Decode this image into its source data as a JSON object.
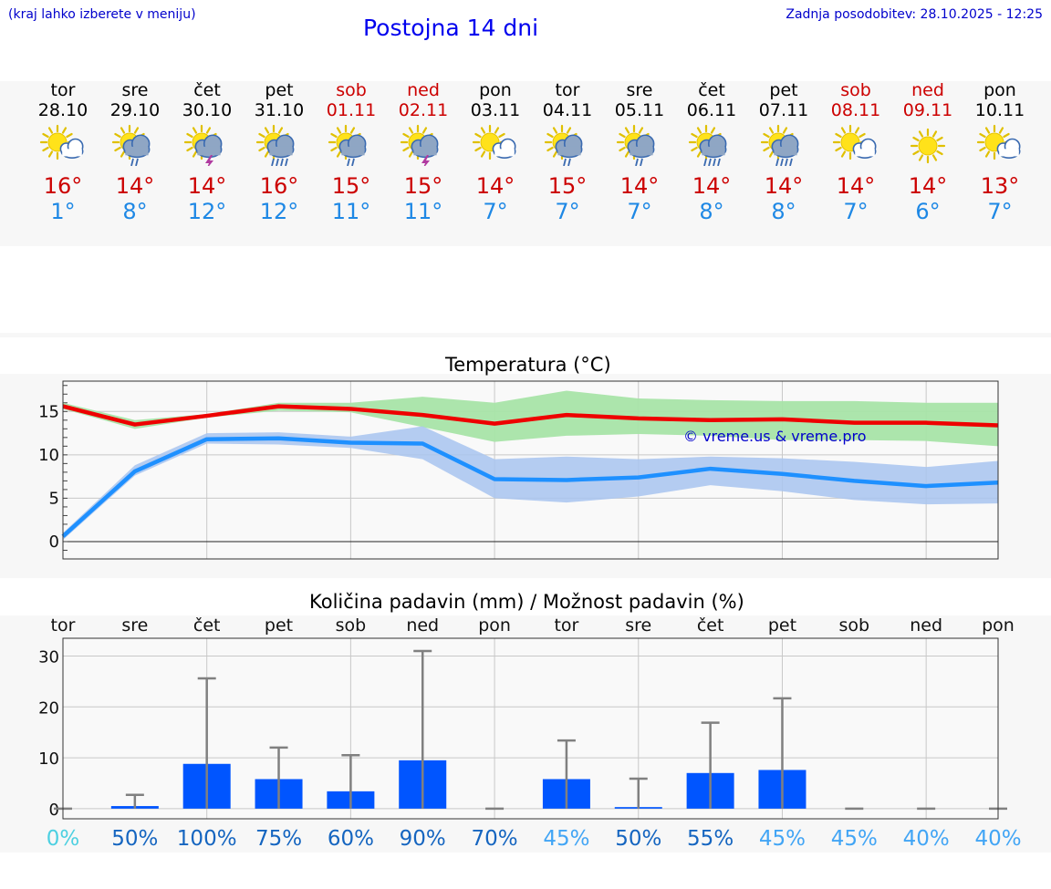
{
  "header": {
    "hint": "(kraj lahko izberete v meniju)",
    "title": "Postojna 14 dni",
    "updated": "Zadnja posodobitev: 28.10.2025 - 12:25"
  },
  "days": [
    {
      "name": "tor",
      "date": "28.10",
      "weekend": false,
      "icon": "sun-cloud-icon",
      "max": "16°",
      "min": "1°"
    },
    {
      "name": "sre",
      "date": "29.10",
      "weekend": false,
      "icon": "sun-cloud-rain-icon",
      "max": "14°",
      "min": "8°"
    },
    {
      "name": "čet",
      "date": "30.10",
      "weekend": false,
      "icon": "sun-cloud-thunder-icon",
      "max": "14°",
      "min": "12°"
    },
    {
      "name": "pet",
      "date": "31.10",
      "weekend": false,
      "icon": "sun-cloud-heavy-rain-icon",
      "max": "16°",
      "min": "12°"
    },
    {
      "name": "sob",
      "date": "01.11",
      "weekend": true,
      "icon": "sun-cloud-rain-icon",
      "max": "15°",
      "min": "11°"
    },
    {
      "name": "ned",
      "date": "02.11",
      "weekend": true,
      "icon": "sun-cloud-thunder-icon",
      "max": "15°",
      "min": "11°"
    },
    {
      "name": "pon",
      "date": "03.11",
      "weekend": false,
      "icon": "sun-cloud-icon",
      "max": "14°",
      "min": "7°"
    },
    {
      "name": "tor",
      "date": "04.11",
      "weekend": false,
      "icon": "sun-cloud-rain-icon",
      "max": "15°",
      "min": "7°"
    },
    {
      "name": "sre",
      "date": "05.11",
      "weekend": false,
      "icon": "sun-cloud-rain-icon",
      "max": "14°",
      "min": "7°"
    },
    {
      "name": "čet",
      "date": "06.11",
      "weekend": false,
      "icon": "sun-cloud-heavy-rain-icon",
      "max": "14°",
      "min": "8°"
    },
    {
      "name": "pet",
      "date": "07.11",
      "weekend": false,
      "icon": "sun-cloud-heavy-rain-icon",
      "max": "14°",
      "min": "8°"
    },
    {
      "name": "sob",
      "date": "08.11",
      "weekend": true,
      "icon": "sun-cloud-icon",
      "max": "14°",
      "min": "7°"
    },
    {
      "name": "ned",
      "date": "09.11",
      "weekend": true,
      "icon": "sun-icon",
      "max": "14°",
      "min": "6°"
    },
    {
      "name": "pon",
      "date": "10.11",
      "weekend": false,
      "icon": "sun-cloud-icon",
      "max": "13°",
      "min": "7°"
    }
  ],
  "colors": {
    "max_line": "#ee0000",
    "max_band": "#a8e4a8",
    "min_line": "#1e90ff",
    "min_band": "#a8c4f0",
    "bar": "#0055ff",
    "whisker": "#808080",
    "weekend": "#cc0000",
    "title": "#0000ee"
  },
  "chart_data": [
    {
      "type": "line",
      "title": "Temperatura (°C)",
      "watermark": "© vreme.us & vreme.pro",
      "ylim": [
        -2,
        18.5
      ],
      "yticks": [
        0,
        5,
        10,
        15
      ],
      "grid": true,
      "x": [
        0,
        1,
        2,
        3,
        4,
        5,
        6,
        7,
        8,
        9,
        10,
        11,
        12,
        13
      ],
      "series": [
        {
          "role": "max",
          "values": [
            15.6,
            13.5,
            14.5,
            15.6,
            15.3,
            14.6,
            13.6,
            14.6,
            14.2,
            14.0,
            14.1,
            13.7,
            13.7,
            13.4
          ],
          "band_low": [
            15.3,
            13.0,
            14.3,
            15.1,
            14.9,
            13.2,
            11.5,
            12.2,
            12.4,
            12.2,
            11.7,
            11.7,
            11.6,
            11.0
          ],
          "band_high": [
            16.0,
            14.0,
            14.7,
            16.0,
            16.0,
            16.7,
            16.0,
            17.4,
            16.5,
            16.3,
            16.2,
            16.2,
            16.0,
            16.0
          ]
        },
        {
          "role": "min",
          "values": [
            0.6,
            8.1,
            11.8,
            11.9,
            11.4,
            11.3,
            7.2,
            7.1,
            7.4,
            8.4,
            7.8,
            7.0,
            6.4,
            6.8
          ],
          "band_low": [
            0.2,
            7.6,
            11.3,
            11.2,
            10.8,
            9.5,
            5.0,
            4.5,
            5.2,
            6.5,
            5.8,
            4.8,
            4.3,
            4.4
          ],
          "band_high": [
            1.0,
            8.8,
            12.5,
            12.6,
            12.1,
            13.3,
            9.5,
            9.8,
            9.5,
            9.8,
            9.6,
            9.2,
            8.6,
            9.3
          ]
        }
      ]
    },
    {
      "type": "bar",
      "title": "Količina padavin (mm) / Možnost padavin (%)",
      "categories": [
        "tor",
        "sre",
        "čet",
        "pet",
        "sob",
        "ned",
        "pon",
        "tor",
        "sre",
        "čet",
        "pet",
        "sob",
        "ned",
        "pon"
      ],
      "ylim": [
        -2,
        33.5
      ],
      "yticks": [
        0,
        10,
        20,
        30
      ],
      "grid": true,
      "values": [
        0,
        0.5,
        8.8,
        5.8,
        3.4,
        9.5,
        0,
        5.8,
        0.3,
        7.0,
        7.6,
        0,
        0,
        0
      ],
      "whisker_max": [
        0,
        2.7,
        25.6,
        12.0,
        10.5,
        31.0,
        0,
        13.4,
        5.9,
        16.9,
        21.7,
        0,
        0,
        0
      ],
      "probability": [
        "0%",
        "50%",
        "100%",
        "75%",
        "60%",
        "90%",
        "70%",
        "45%",
        "50%",
        "55%",
        "45%",
        "45%",
        "40%",
        "40%"
      ],
      "probability_colors": [
        "#4dd0e1",
        "#1565c0",
        "#1565c0",
        "#1565c0",
        "#1565c0",
        "#1565c0",
        "#1565c0",
        "#42a5f5",
        "#1565c0",
        "#1565c0",
        "#42a5f5",
        "#42a5f5",
        "#42a5f5",
        "#42a5f5"
      ]
    }
  ]
}
